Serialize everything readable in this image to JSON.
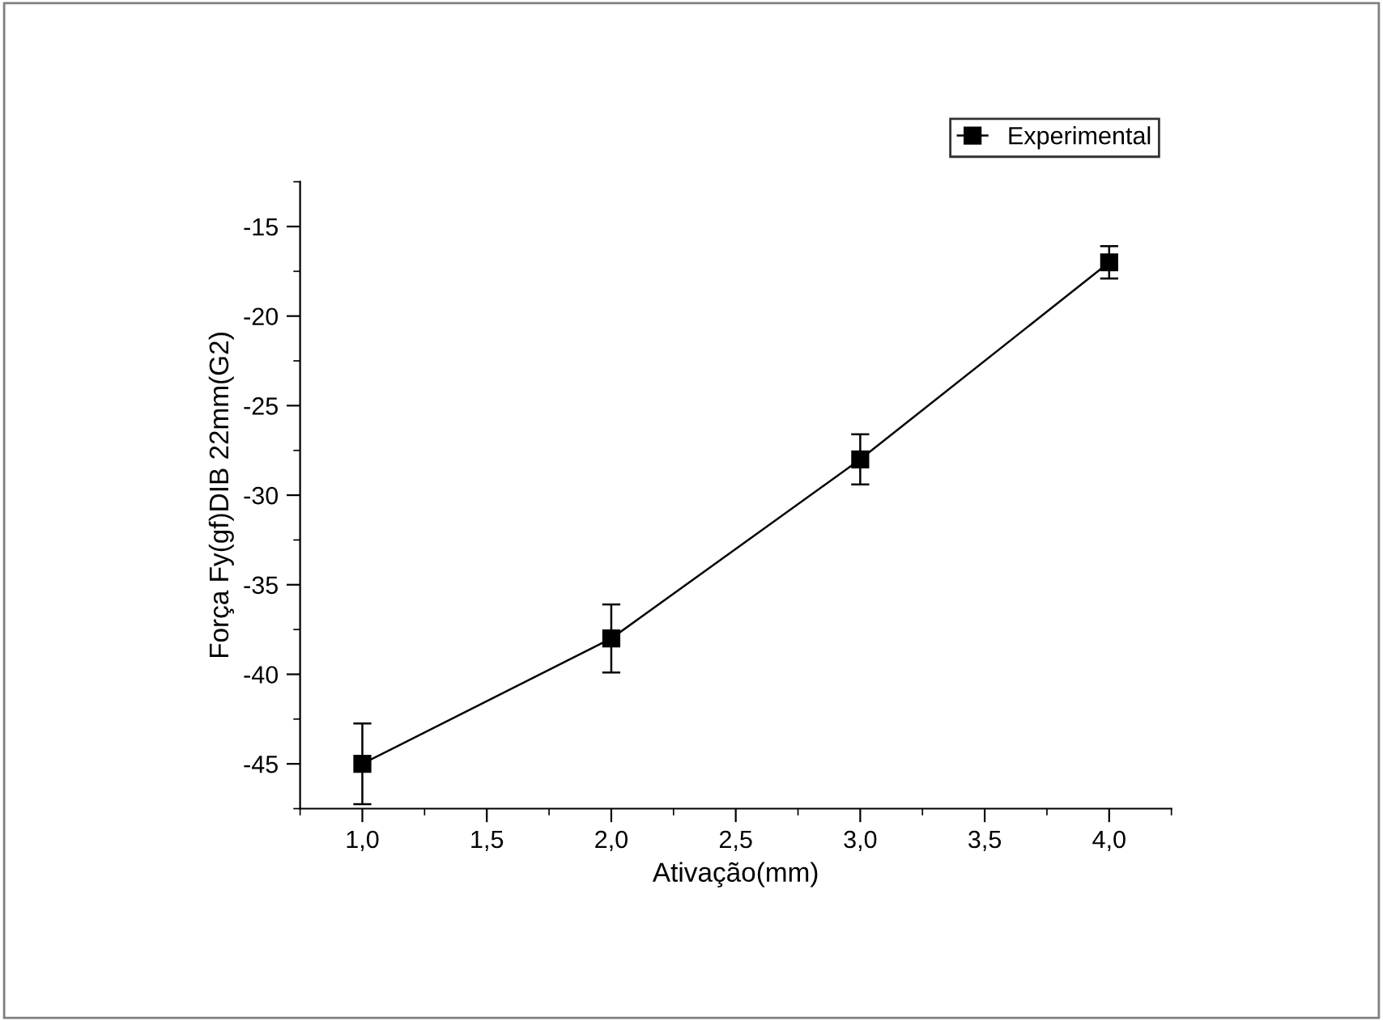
{
  "chart_data": {
    "type": "line",
    "xlabel": "Ativação(mm)",
    "ylabel": "Força Fy(gf)DIB 22mm(G2)",
    "x": [
      1.0,
      2.0,
      3.0,
      4.0
    ],
    "series": [
      {
        "name": "Experimental",
        "color": "#000000",
        "values": [
          -45,
          -38,
          -28,
          -17
        ],
        "errors": [
          2.25,
          1.9,
          1.4,
          0.9
        ]
      }
    ],
    "marker": "square",
    "line_style": "solid",
    "legend": "top right",
    "grid": false,
    "xlim": [
      0.75,
      4.25
    ],
    "ylim": [
      -47.5,
      -12.5
    ],
    "xticks": [
      {
        "value": 1.0,
        "label": "1,0"
      },
      {
        "value": 1.5,
        "label": "1,5"
      },
      {
        "value": 2.0,
        "label": "2,0"
      },
      {
        "value": 2.5,
        "label": "2,5"
      },
      {
        "value": 3.0,
        "label": "3,0"
      },
      {
        "value": 3.5,
        "label": "3,5"
      },
      {
        "value": 4.0,
        "label": "4,0"
      }
    ],
    "yticks": [
      -45,
      -40,
      -35,
      -30,
      -25,
      -20,
      -15
    ]
  }
}
